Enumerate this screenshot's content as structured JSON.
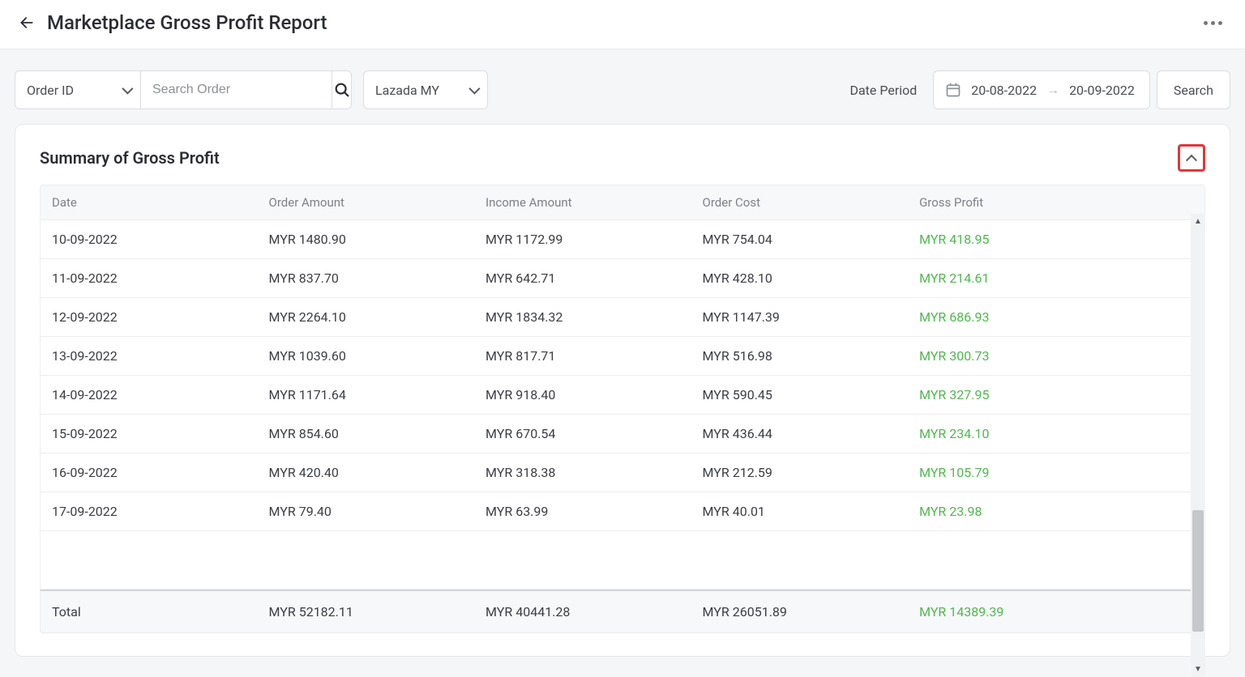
{
  "header": {
    "title": "Marketplace Gross Profit Report"
  },
  "filters": {
    "search_by_label": "Order ID",
    "search_placeholder": "Search Order",
    "marketplace_selected": "Lazada MY",
    "date_period_label": "Date Period",
    "date_from": "20-08-2022",
    "date_to": "20-09-2022",
    "search_button": "Search"
  },
  "summary": {
    "title": "Summary of Gross Profit",
    "columns": [
      "Date",
      "Order Amount",
      "Income Amount",
      "Order Cost",
      "Gross Profit"
    ],
    "rows": [
      {
        "date": "10-09-2022",
        "order_amount": "MYR 1480.90",
        "income_amount": "MYR 1172.99",
        "order_cost": "MYR 754.04",
        "gross_profit": "MYR 418.95"
      },
      {
        "date": "11-09-2022",
        "order_amount": "MYR 837.70",
        "income_amount": "MYR 642.71",
        "order_cost": "MYR 428.10",
        "gross_profit": "MYR 214.61"
      },
      {
        "date": "12-09-2022",
        "order_amount": "MYR 2264.10",
        "income_amount": "MYR 1834.32",
        "order_cost": "MYR 1147.39",
        "gross_profit": "MYR 686.93"
      },
      {
        "date": "13-09-2022",
        "order_amount": "MYR 1039.60",
        "income_amount": "MYR 817.71",
        "order_cost": "MYR 516.98",
        "gross_profit": "MYR 300.73"
      },
      {
        "date": "14-09-2022",
        "order_amount": "MYR 1171.64",
        "income_amount": "MYR 918.40",
        "order_cost": "MYR 590.45",
        "gross_profit": "MYR 327.95"
      },
      {
        "date": "15-09-2022",
        "order_amount": "MYR 854.60",
        "income_amount": "MYR 670.54",
        "order_cost": "MYR 436.44",
        "gross_profit": "MYR 234.10"
      },
      {
        "date": "16-09-2022",
        "order_amount": "MYR 420.40",
        "income_amount": "MYR 318.38",
        "order_cost": "MYR 212.59",
        "gross_profit": "MYR 105.79"
      },
      {
        "date": "17-09-2022",
        "order_amount": "MYR 79.40",
        "income_amount": "MYR 63.99",
        "order_cost": "MYR 40.01",
        "gross_profit": "MYR 23.98"
      }
    ],
    "total": {
      "label": "Total",
      "order_amount": "MYR 52182.11",
      "income_amount": "MYR 40441.28",
      "order_cost": "MYR 26051.89",
      "gross_profit": "MYR 14389.39"
    }
  },
  "style": {
    "profit_color": "#4fb84e",
    "highlight_border": "#e2363a",
    "page_bg": "#f5f6f8",
    "card_bg": "#ffffff",
    "scrollbar": {
      "thumb_top_pct": 65,
      "thumb_height_pct": 28
    }
  }
}
